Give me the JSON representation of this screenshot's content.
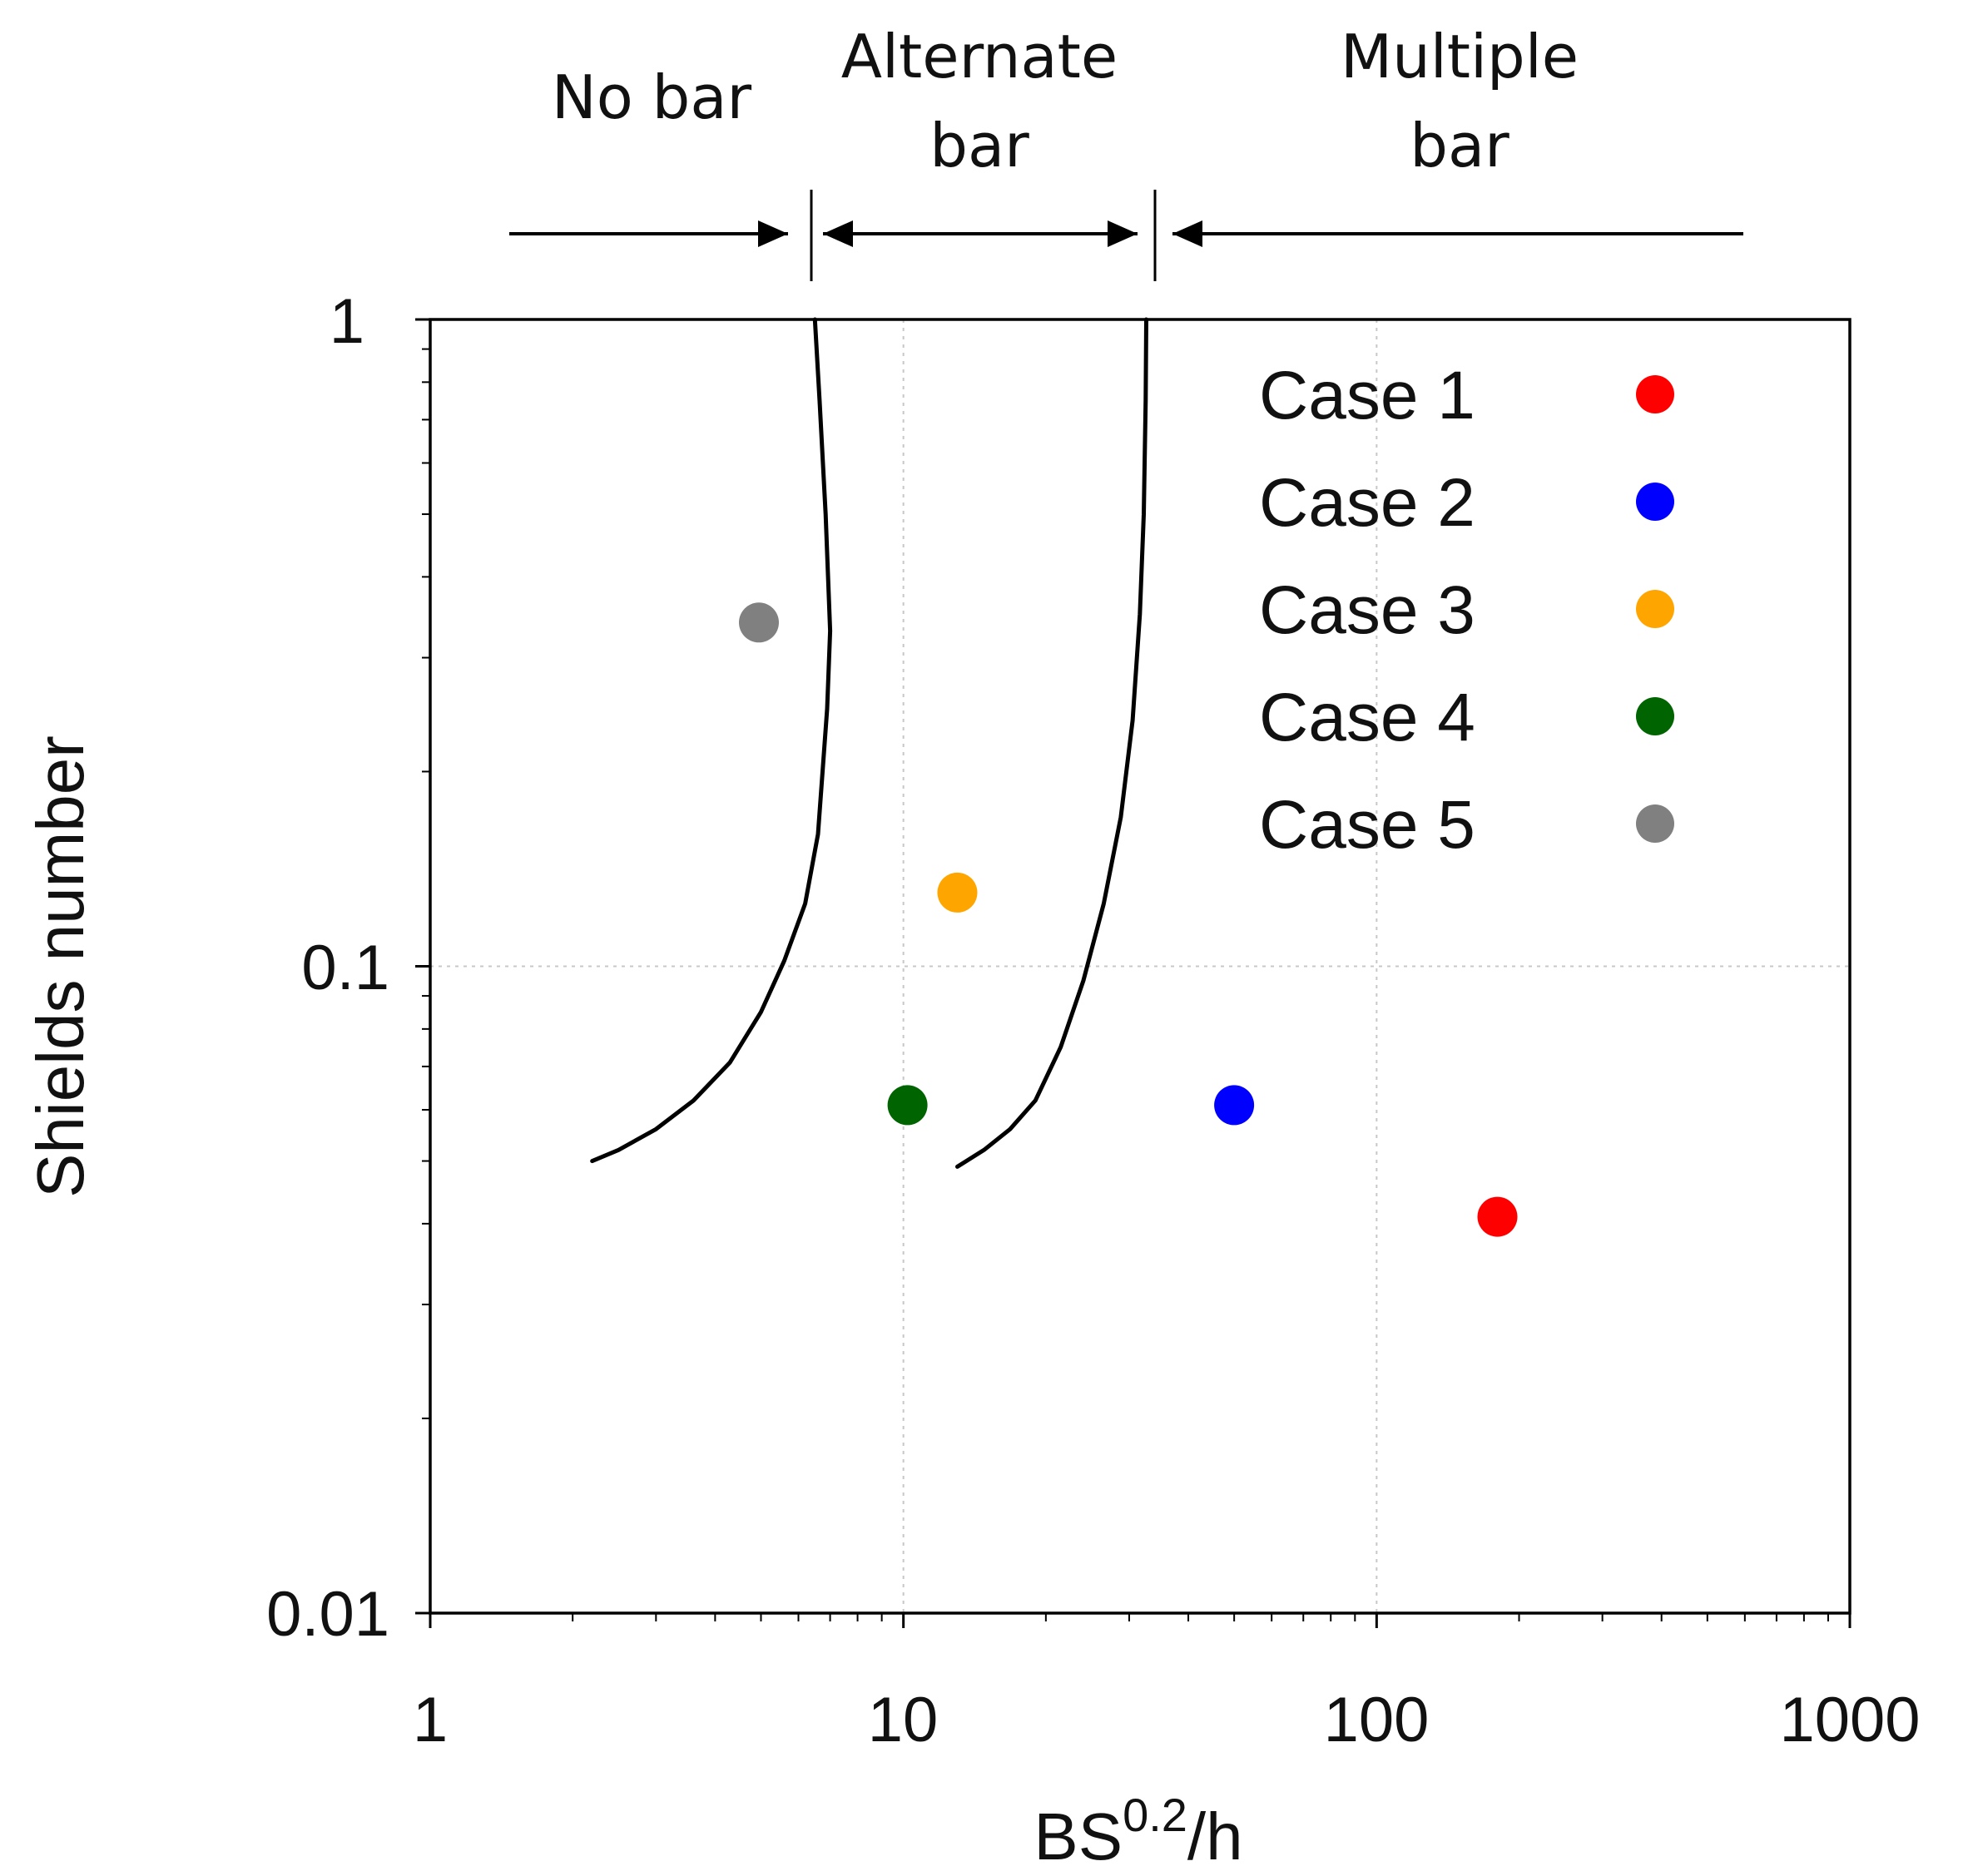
{
  "chart_data": {
    "type": "scatter",
    "xscale": "log",
    "yscale": "log",
    "xlim": [
      1,
      1000
    ],
    "ylim": [
      0.01,
      1
    ],
    "xlabel_main": "BS",
    "xlabel_sup": "0.2",
    "xlabel_tail": "/h",
    "ylabel": "Shields number",
    "x_ticks": [
      1,
      10,
      100,
      1000
    ],
    "x_tick_labels": [
      "1",
      "10",
      "100",
      "1000"
    ],
    "y_ticks": [
      0.01,
      0.1,
      1
    ],
    "y_tick_labels": [
      "0.01",
      "0.1",
      "1"
    ],
    "grid": true,
    "legend_position": "top-right",
    "series": [
      {
        "name": "Case 1",
        "color": "#ff0000",
        "x": 180,
        "y": 0.041
      },
      {
        "name": "Case 2",
        "color": "#0000ff",
        "x": 50,
        "y": 0.061
      },
      {
        "name": "Case 3",
        "color": "#ffa500",
        "x": 13,
        "y": 0.13
      },
      {
        "name": "Case 4",
        "color": "#006400",
        "x": 10.2,
        "y": 0.061
      },
      {
        "name": "Case 5",
        "color": "#808080",
        "x": 4.95,
        "y": 0.34
      }
    ],
    "boundaries": [
      {
        "name": "no-bar / alternate-bar boundary",
        "points": [
          [
            2.2,
            0.05
          ],
          [
            2.5,
            0.052
          ],
          [
            3.0,
            0.056
          ],
          [
            3.6,
            0.062
          ],
          [
            4.3,
            0.071
          ],
          [
            5.0,
            0.085
          ],
          [
            5.6,
            0.102
          ],
          [
            6.2,
            0.125
          ],
          [
            6.6,
            0.16
          ],
          [
            6.9,
            0.25
          ],
          [
            7.0,
            0.33
          ],
          [
            6.85,
            0.5
          ],
          [
            6.65,
            0.75
          ],
          [
            6.5,
            1.0
          ]
        ]
      },
      {
        "name": "alternate-bar / multiple-bar boundary",
        "points": [
          [
            13,
            0.049
          ],
          [
            14.8,
            0.052
          ],
          [
            16.8,
            0.056
          ],
          [
            19,
            0.062
          ],
          [
            21.5,
            0.075
          ],
          [
            24,
            0.095
          ],
          [
            26.5,
            0.125
          ],
          [
            28.8,
            0.17
          ],
          [
            30.5,
            0.24
          ],
          [
            31.6,
            0.35
          ],
          [
            32.2,
            0.5
          ],
          [
            32.5,
            0.75
          ],
          [
            32.6,
            1.0
          ]
        ]
      }
    ],
    "regimes": [
      {
        "label_lines": [
          "No bar"
        ],
        "arrow": "right"
      },
      {
        "label_lines": [
          "Alternate",
          "bar"
        ],
        "arrow": "both"
      },
      {
        "label_lines": [
          "Multiple",
          "bar"
        ],
        "arrow": "left"
      }
    ],
    "regime_dividers_x": [
      6.3,
      32.6
    ]
  }
}
